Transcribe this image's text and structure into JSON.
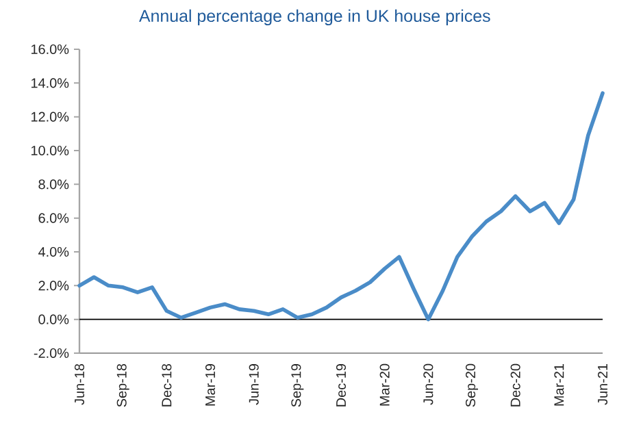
{
  "chart_data": {
    "type": "line",
    "title": "Annual percentage change in UK house prices",
    "categories": [
      "Jun-18",
      null,
      null,
      "Sep-18",
      null,
      null,
      "Dec-18",
      null,
      null,
      "Mar-19",
      null,
      null,
      "Jun-19",
      null,
      null,
      "Sep-19",
      null,
      null,
      "Dec-19",
      null,
      null,
      "Mar-20",
      null,
      null,
      "Jun-20",
      null,
      null,
      "Sep-20",
      null,
      null,
      "Dec-20",
      null,
      null,
      "Mar-21",
      null,
      null,
      "Jun-21"
    ],
    "series": [
      {
        "color": "#4a8cc8",
        "values": [
          2.0,
          2.5,
          2.0,
          1.9,
          1.6,
          1.9,
          0.5,
          0.1,
          0.4,
          0.7,
          0.9,
          0.6,
          0.5,
          0.3,
          0.6,
          0.1,
          0.3,
          0.7,
          1.3,
          1.7,
          2.2,
          3.0,
          3.7,
          1.8,
          0.0,
          1.7,
          3.7,
          4.9,
          5.8,
          6.4,
          7.3,
          6.4,
          6.9,
          5.7,
          7.1,
          10.9,
          13.4
        ]
      }
    ],
    "ylim": [
      -2,
      16
    ],
    "yticks": [
      {
        "value": -2,
        "label": "-2.0%"
      },
      {
        "value": 0,
        "label": "0.0%"
      },
      {
        "value": 2,
        "label": "2.0%"
      },
      {
        "value": 4,
        "label": "4.0%"
      },
      {
        "value": 6,
        "label": "6.0%"
      },
      {
        "value": 8,
        "label": "8.0%"
      },
      {
        "value": 10,
        "label": "10.0%"
      },
      {
        "value": 12,
        "label": "12.0%"
      },
      {
        "value": 14,
        "label": "14.0%"
      },
      {
        "value": 16,
        "label": "16.0%"
      }
    ],
    "ref_lines": [
      {
        "axis": "y",
        "value": 0,
        "color": "#000000"
      }
    ],
    "legend": false,
    "marker": "none",
    "line_style": "solid"
  }
}
